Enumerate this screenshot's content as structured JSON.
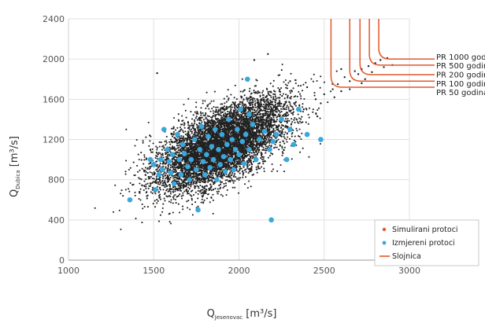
{
  "chart_data": {
    "type": "scatter",
    "title": "",
    "xlabel": {
      "main": "Q",
      "sub": "Jesenovac",
      "unit": " [m³/s]"
    },
    "ylabel": {
      "main": "Q",
      "sub": "Dubica",
      "unit": " [m³/s]"
    },
    "xlim": [
      1000,
      3000
    ],
    "ylim": [
      0,
      2400
    ],
    "xticks": [
      1000,
      1500,
      2000,
      2500,
      3000
    ],
    "yticks": [
      0,
      400,
      800,
      1200,
      1600,
      2000,
      2400
    ],
    "grid": true,
    "legend_position": "bottom-right",
    "series": [
      {
        "name": "Simulirani protoci",
        "color": "#222222",
        "marker": "dot",
        "distribution": {
          "count": 7000,
          "center": [
            1900,
            1150
          ],
          "std": [
            190,
            230
          ],
          "correlation": 0.62
        },
        "extreme_points": [
          [
            2450,
            1600
          ],
          [
            2500,
            1650
          ],
          [
            2550,
            1700
          ],
          [
            2580,
            1750
          ],
          [
            2600,
            1680
          ],
          [
            2620,
            1820
          ],
          [
            2650,
            1780
          ],
          [
            2680,
            1880
          ],
          [
            2700,
            1850
          ],
          [
            2720,
            1900
          ],
          [
            2740,
            1800
          ],
          [
            2760,
            1930
          ],
          [
            2780,
            1870
          ],
          [
            2800,
            1960
          ],
          [
            2830,
            1990
          ],
          [
            2850,
            1920
          ],
          [
            2870,
            2010
          ],
          [
            2900,
            1940
          ],
          [
            2720,
            1760
          ],
          [
            2650,
            1700
          ],
          [
            2560,
            1620
          ],
          [
            2480,
            1560
          ],
          [
            2600,
            1900
          ],
          [
            2300,
            1780
          ],
          [
            2400,
            1720
          ],
          [
            1520,
            1860
          ],
          [
            2170,
            2050
          ],
          [
            2090,
            1990
          ],
          [
            2380,
            1500
          ],
          [
            2460,
            1430
          ]
        ]
      },
      {
        "name": "Izmjereni protoci",
        "color": "#3aa8dc",
        "marker": "circle",
        "points": [
          [
            1360,
            600
          ],
          [
            1480,
            1000
          ],
          [
            1500,
            950
          ],
          [
            1510,
            700
          ],
          [
            1530,
            850
          ],
          [
            1540,
            1000
          ],
          [
            1550,
            900
          ],
          [
            1560,
            1300
          ],
          [
            1580,
            1100
          ],
          [
            1590,
            980
          ],
          [
            1600,
            870
          ],
          [
            1610,
            1050
          ],
          [
            1620,
            760
          ],
          [
            1640,
            1250
          ],
          [
            1650,
            1000
          ],
          [
            1660,
            850
          ],
          [
            1670,
            1150
          ],
          [
            1680,
            1060
          ],
          [
            1700,
            930
          ],
          [
            1710,
            800
          ],
          [
            1720,
            1000
          ],
          [
            1740,
            1200
          ],
          [
            1750,
            900
          ],
          [
            1760,
            500
          ],
          [
            1770,
            1100
          ],
          [
            1780,
            1330
          ],
          [
            1790,
            980
          ],
          [
            1800,
            850
          ],
          [
            1810,
            1050
          ],
          [
            1820,
            1230
          ],
          [
            1830,
            920
          ],
          [
            1840,
            1130
          ],
          [
            1850,
            1000
          ],
          [
            1860,
            1300
          ],
          [
            1870,
            800
          ],
          [
            1880,
            1100
          ],
          [
            1890,
            950
          ],
          [
            1900,
            1250
          ],
          [
            1910,
            1030
          ],
          [
            1920,
            880
          ],
          [
            1930,
            1150
          ],
          [
            1940,
            1400
          ],
          [
            1950,
            1000
          ],
          [
            1960,
            1200
          ],
          [
            1970,
            900
          ],
          [
            1980,
            1100
          ],
          [
            1990,
            1300
          ],
          [
            2000,
            1050
          ],
          [
            2010,
            1500
          ],
          [
            2020,
            1180
          ],
          [
            2030,
            960
          ],
          [
            2040,
            1250
          ],
          [
            2050,
            1800
          ],
          [
            2060,
            1100
          ],
          [
            2080,
            1350
          ],
          [
            2100,
            1000
          ],
          [
            2120,
            1200
          ],
          [
            2150,
            1280
          ],
          [
            2180,
            1100
          ],
          [
            2200,
            1180
          ],
          [
            2220,
            1250
          ],
          [
            2250,
            1400
          ],
          [
            2280,
            1000
          ],
          [
            2300,
            1300
          ],
          [
            2320,
            1150
          ],
          [
            2350,
            1500
          ],
          [
            2400,
            1250
          ],
          [
            2480,
            1200
          ],
          [
            2190,
            400
          ],
          [
            2060,
            1450
          ]
        ]
      },
      {
        "name": "Slojnica",
        "color": "#e2572c",
        "marker": "line"
      }
    ],
    "return_period_curves": [
      {
        "label": "PR 1000 godina",
        "x_start": 2820,
        "y_end": 2000
      },
      {
        "label": "PR 500 godina",
        "x_start": 2765,
        "y_end": 1940
      },
      {
        "label": "PR 200 godina",
        "x_start": 2710,
        "y_end": 1845
      },
      {
        "label": "PR 100 godina",
        "x_start": 2650,
        "y_end": 1780
      },
      {
        "label": "PR 50  godina",
        "x_start": 2540,
        "y_end": 1720
      }
    ],
    "curve_label_y": [
      2015,
      1930,
      1840,
      1750,
      1665
    ]
  }
}
